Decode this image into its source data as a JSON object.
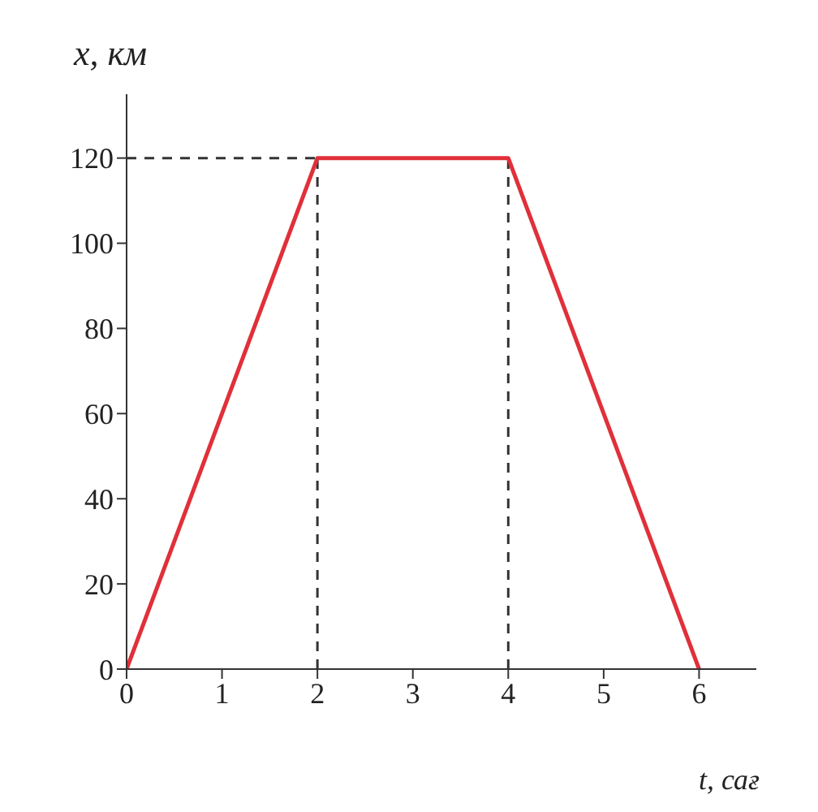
{
  "chart_data": {
    "type": "line",
    "xlabel": "t, сағ",
    "ylabel": "x, км",
    "x": [
      0,
      2,
      4,
      6
    ],
    "series": [
      {
        "color": "#e0303a",
        "values": [
          0,
          120,
          120,
          0
        ]
      }
    ],
    "xlim": [
      0,
      6.6
    ],
    "xticks": [
      0,
      1,
      2,
      3,
      4,
      5,
      6
    ],
    "ylim": [
      0,
      135
    ],
    "yticks": [
      0,
      20,
      40,
      60,
      80,
      100,
      120
    ],
    "grid": false,
    "legend": false,
    "marker": "none",
    "line_style": "solid",
    "ref_lines": [
      {
        "axis": "y",
        "value": 120,
        "line_style": "dashed",
        "color": "#333333"
      },
      {
        "axis": "x",
        "value": 2,
        "line_style": "dashed",
        "color": "#333333"
      },
      {
        "axis": "x",
        "value": 4,
        "line_style": "dashed",
        "color": "#333333"
      }
    ]
  }
}
